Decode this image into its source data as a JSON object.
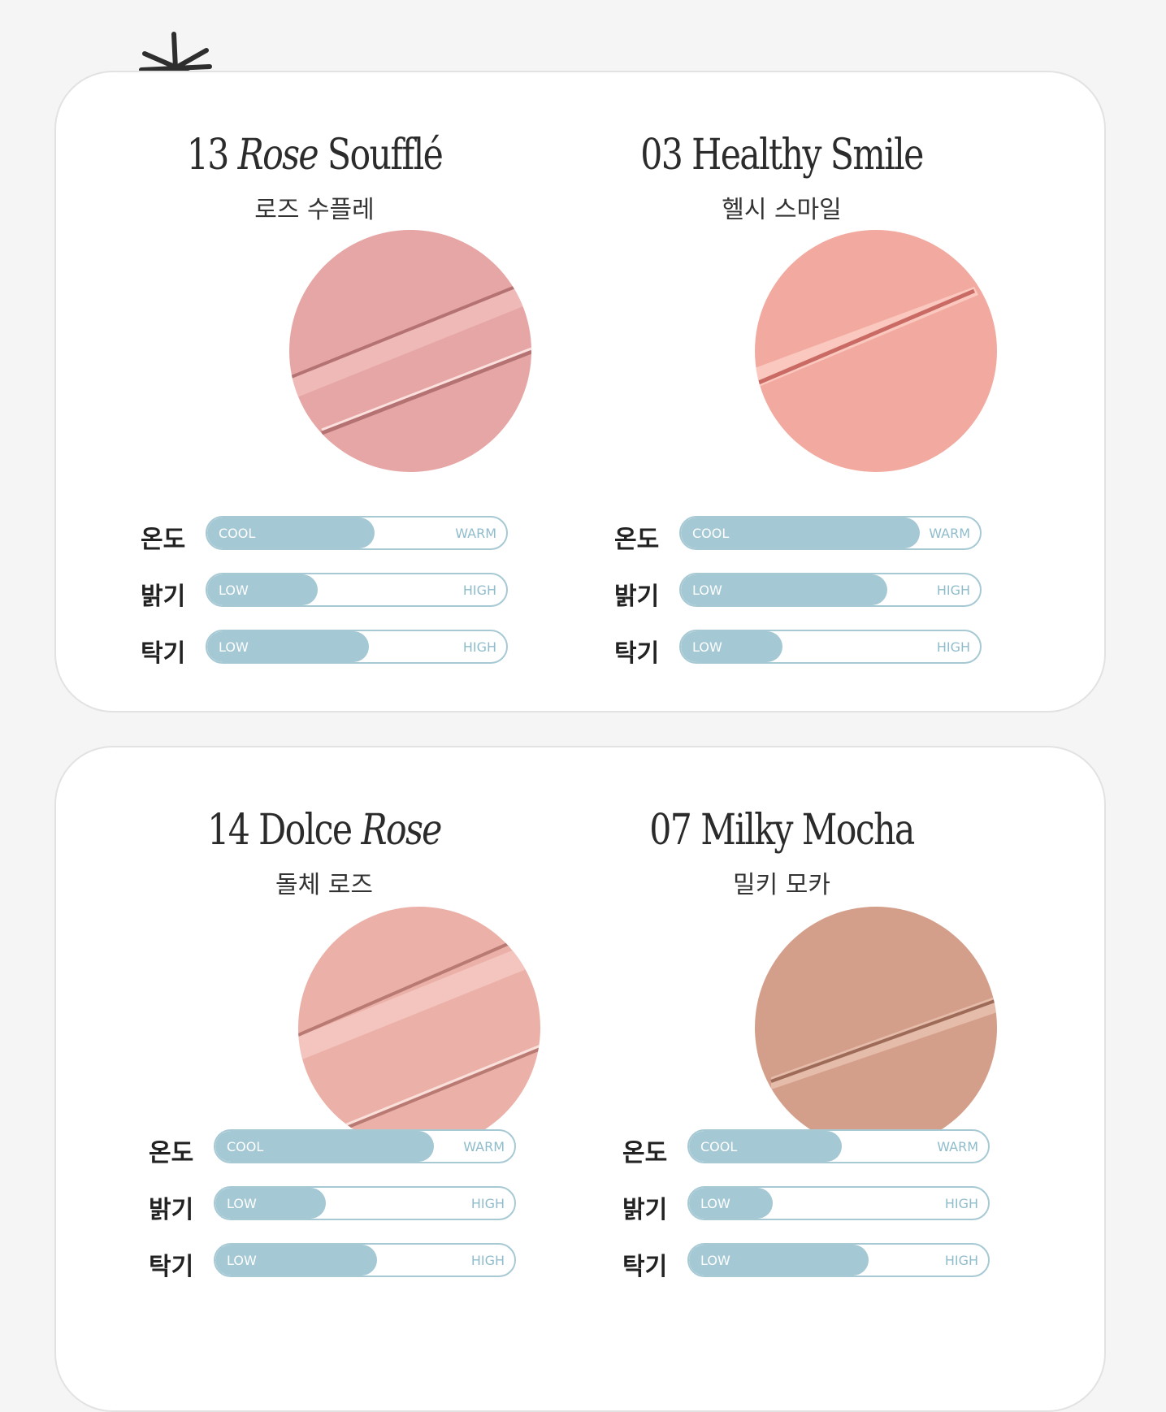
{
  "header": {
    "cut_text": ""
  },
  "cards": [
    {
      "shades": [
        {
          "name_parts": [
            {
              "text": "13 ",
              "italic": false
            },
            {
              "text": "Rose",
              "italic": true
            },
            {
              "text": " Soufflé",
              "italic": false
            }
          ],
          "name_kr": "로즈 수플레",
          "swatch_color": "#e6a6a5",
          "meters": [
            {
              "label": "온도",
              "min": "COOL",
              "max": "WARM",
              "level": 0.56
            },
            {
              "label": "밝기",
              "min": "LOW",
              "max": "HIGH",
              "level": 0.37
            },
            {
              "label": "탁기",
              "min": "LOW",
              "max": "HIGH",
              "level": 0.54
            }
          ]
        },
        {
          "name_parts": [
            {
              "text": "03 Healthy Smile",
              "italic": false
            }
          ],
          "name_kr": "헬시 스마일",
          "swatch_color": "#f2aaa0",
          "meters": [
            {
              "label": "온도",
              "min": "COOL",
              "max": "WARM",
              "level": 0.8
            },
            {
              "label": "밝기",
              "min": "LOW",
              "max": "HIGH",
              "level": 0.69
            },
            {
              "label": "탁기",
              "min": "LOW",
              "max": "HIGH",
              "level": 0.34
            }
          ]
        }
      ]
    },
    {
      "shades": [
        {
          "name_parts": [
            {
              "text": "14 Dolce ",
              "italic": false
            },
            {
              "text": "Rose",
              "italic": true
            }
          ],
          "name_kr": "돌체 로즈",
          "swatch_color": "#ebb1a8",
          "meters": [
            {
              "label": "온도",
              "min": "COOL",
              "max": "WARM",
              "level": 0.73
            },
            {
              "label": "밝기",
              "min": "LOW",
              "max": "HIGH",
              "level": 0.37
            },
            {
              "label": "탁기",
              "min": "LOW",
              "max": "HIGH",
              "level": 0.54
            }
          ]
        },
        {
          "name_parts": [
            {
              "text": "07 Milky Mocha",
              "italic": false
            }
          ],
          "name_kr": "밀키 모카",
          "swatch_color": "#d49f8a",
          "meters": [
            {
              "label": "온도",
              "min": "COOL",
              "max": "WARM",
              "level": 0.51
            },
            {
              "label": "밝기",
              "min": "LOW",
              "max": "HIGH",
              "level": 0.28
            },
            {
              "label": "탁기",
              "min": "LOW",
              "max": "HIGH",
              "level": 0.6
            }
          ]
        }
      ]
    }
  ]
}
